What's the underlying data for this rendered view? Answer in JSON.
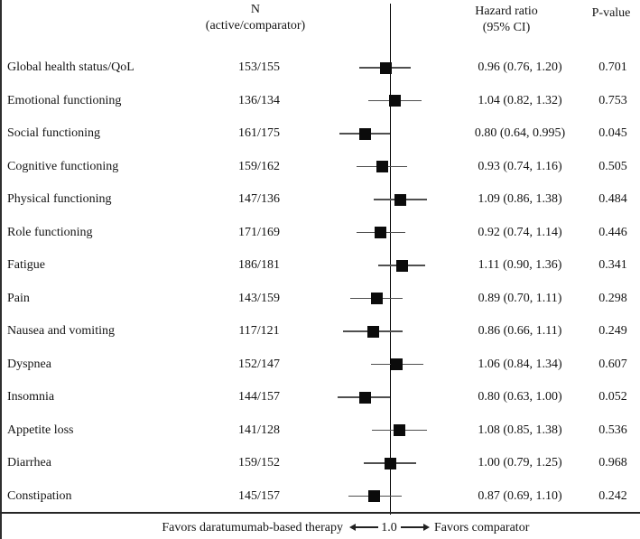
{
  "colors": {
    "background": "#ffffff",
    "text": "#141414",
    "marker": "#0b0b0b",
    "whisker": "#4f4f4f",
    "axis_line": "#000000",
    "rule": "#262626"
  },
  "chart_data": {
    "type": "forest",
    "x_scale": "log",
    "ref_line": 1.0,
    "grid": false,
    "header": {
      "col_n_line1": "N",
      "col_n_line2": "(active/comparator)",
      "col_hr_line1": "Hazard ratio",
      "col_hr_line2": "(95% CI)",
      "col_p": "P-value"
    },
    "rows": [
      {
        "label": "Global health status/QoL",
        "n": "153/155",
        "hr": 0.96,
        "ci_low": 0.76,
        "ci_high": 1.2,
        "hr_ci_text": "0.96 (0.76, 1.20)",
        "p_value": "0.701"
      },
      {
        "label": "Emotional functioning",
        "n": "136/134",
        "hr": 1.04,
        "ci_low": 0.82,
        "ci_high": 1.32,
        "hr_ci_text": "1.04 (0.82, 1.32)",
        "p_value": "0.753"
      },
      {
        "label": "Social functioning",
        "n": "161/175",
        "hr": 0.8,
        "ci_low": 0.64,
        "ci_high": 0.995,
        "hr_ci_text": "0.80 (0.64, 0.995)",
        "p_value": "0.045"
      },
      {
        "label": "Cognitive functioning",
        "n": "159/162",
        "hr": 0.93,
        "ci_low": 0.74,
        "ci_high": 1.16,
        "hr_ci_text": "0.93 (0.74, 1.16)",
        "p_value": "0.505"
      },
      {
        "label": "Physical functioning",
        "n": "147/136",
        "hr": 1.09,
        "ci_low": 0.86,
        "ci_high": 1.38,
        "hr_ci_text": "1.09 (0.86, 1.38)",
        "p_value": "0.484"
      },
      {
        "label": "Role functioning",
        "n": "171/169",
        "hr": 0.92,
        "ci_low": 0.74,
        "ci_high": 1.14,
        "hr_ci_text": "0.92 (0.74, 1.14)",
        "p_value": "0.446"
      },
      {
        "label": "Fatigue",
        "n": "186/181",
        "hr": 1.11,
        "ci_low": 0.9,
        "ci_high": 1.36,
        "hr_ci_text": "1.11 (0.90, 1.36)",
        "p_value": "0.341"
      },
      {
        "label": "Pain",
        "n": "143/159",
        "hr": 0.89,
        "ci_low": 0.7,
        "ci_high": 1.11,
        "hr_ci_text": "0.89 (0.70, 1.11)",
        "p_value": "0.298"
      },
      {
        "label": "Nausea and vomiting",
        "n": "117/121",
        "hr": 0.86,
        "ci_low": 0.66,
        "ci_high": 1.11,
        "hr_ci_text": "0.86 (0.66, 1.11)",
        "p_value": "0.249"
      },
      {
        "label": "Dyspnea",
        "n": "152/147",
        "hr": 1.06,
        "ci_low": 0.84,
        "ci_high": 1.34,
        "hr_ci_text": "1.06 (0.84, 1.34)",
        "p_value": "0.607"
      },
      {
        "label": "Insomnia",
        "n": "144/157",
        "hr": 0.8,
        "ci_low": 0.63,
        "ci_high": 1.0,
        "hr_ci_text": "0.80 (0.63, 1.00)",
        "p_value": "0.052"
      },
      {
        "label": "Appetite loss",
        "n": "141/128",
        "hr": 1.08,
        "ci_low": 0.85,
        "ci_high": 1.38,
        "hr_ci_text": "1.08 (0.85, 1.38)",
        "p_value": "0.536"
      },
      {
        "label": "Diarrhea",
        "n": "159/152",
        "hr": 1.0,
        "ci_low": 0.79,
        "ci_high": 1.25,
        "hr_ci_text": "1.00 (0.79, 1.25)",
        "p_value": "0.968"
      },
      {
        "label": "Constipation",
        "n": "145/157",
        "hr": 0.87,
        "ci_low": 0.69,
        "ci_high": 1.1,
        "hr_ci_text": "0.87 (0.69, 1.10)",
        "p_value": "0.242"
      }
    ],
    "footer": {
      "favors_left": "Favors daratumumab-based therapy",
      "ref_label": "1.0",
      "favors_right": "Favors comparator"
    }
  }
}
